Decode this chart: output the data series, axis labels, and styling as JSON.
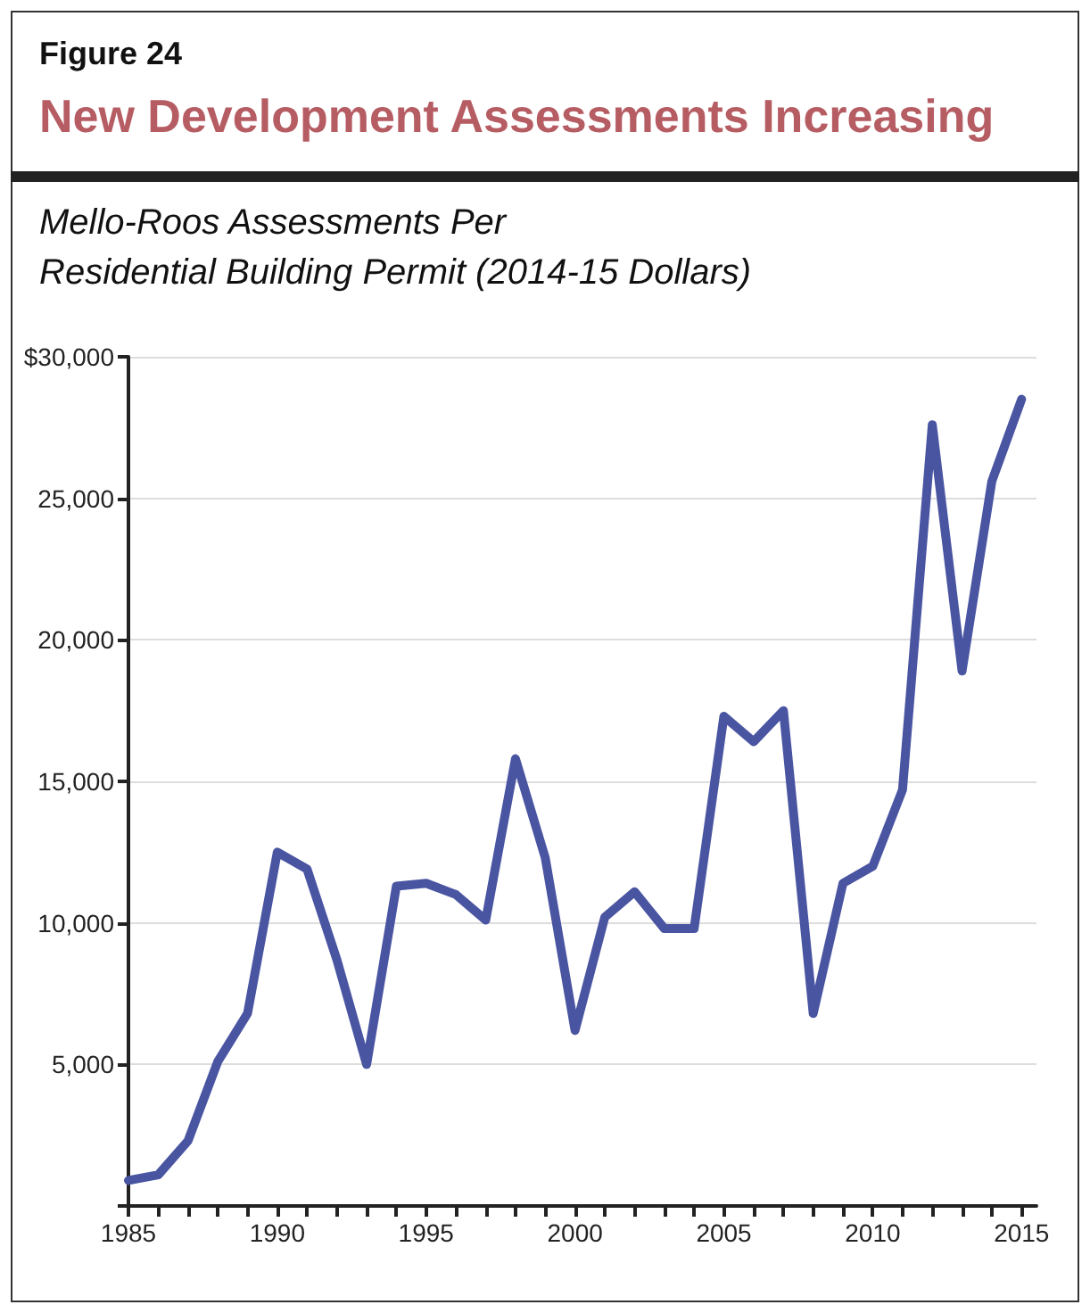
{
  "chart_data": {
    "type": "line",
    "title": "New Development Assessments Increasing",
    "subtitle": "Mello-Roos Assessments Per\nResidential Building Permit (2014-15 Dollars)",
    "annotations": [
      "Figure 24"
    ],
    "x": [
      1985,
      1986,
      1987,
      1988,
      1989,
      1990,
      1991,
      1992,
      1993,
      1994,
      1995,
      1996,
      1997,
      1998,
      1999,
      2000,
      2001,
      2002,
      2003,
      2004,
      2005,
      2006,
      2007,
      2008,
      2009,
      2010,
      2011,
      2012,
      2013,
      2014,
      2015
    ],
    "series": [
      {
        "color": "#4a55a2",
        "values": [
          900,
          1100,
          2300,
          5100,
          6800,
          12500,
          11900,
          8700,
          5000,
          11300,
          11400,
          11000,
          10100,
          15800,
          12300,
          6200,
          10200,
          11100,
          9800,
          9800,
          17300,
          16400,
          17500,
          6800,
          11400,
          12000,
          14700,
          27600,
          18900,
          25600,
          28500
        ]
      }
    ],
    "xlim": [
      1985,
      2015.5
    ],
    "xticks": [
      1985,
      {
        "value": 1986,
        "label": null
      },
      {
        "value": 1987,
        "label": null
      },
      {
        "value": 1988,
        "label": null
      },
      {
        "value": 1989,
        "label": null
      },
      1990,
      {
        "value": 1991,
        "label": null
      },
      {
        "value": 1992,
        "label": null
      },
      {
        "value": 1993,
        "label": null
      },
      {
        "value": 1994,
        "label": null
      },
      1995,
      {
        "value": 1996,
        "label": null
      },
      {
        "value": 1997,
        "label": null
      },
      {
        "value": 1998,
        "label": null
      },
      {
        "value": 1999,
        "label": null
      },
      2000,
      {
        "value": 2001,
        "label": null
      },
      {
        "value": 2002,
        "label": null
      },
      {
        "value": 2003,
        "label": null
      },
      {
        "value": 2004,
        "label": null
      },
      2005,
      {
        "value": 2006,
        "label": null
      },
      {
        "value": 2007,
        "label": null
      },
      {
        "value": 2008,
        "label": null
      },
      {
        "value": 2009,
        "label": null
      },
      2010,
      {
        "value": 2011,
        "label": null
      },
      {
        "value": 2012,
        "label": null
      },
      {
        "value": 2013,
        "label": null
      },
      {
        "value": 2014,
        "label": null
      },
      2015
    ],
    "ylim": [
      0,
      30000
    ],
    "yticks": [
      {
        "value": 0,
        "label": null
      },
      {
        "value": 5000,
        "label": "5,000"
      },
      {
        "value": 10000,
        "label": "10,000"
      },
      {
        "value": 15000,
        "label": "15,000"
      },
      {
        "value": 20000,
        "label": "20,000"
      },
      {
        "value": 25000,
        "label": "25,000"
      },
      {
        "value": 30000,
        "label": "$30,000"
      }
    ],
    "grid": "y",
    "line_style": "solid",
    "marker": "none"
  }
}
